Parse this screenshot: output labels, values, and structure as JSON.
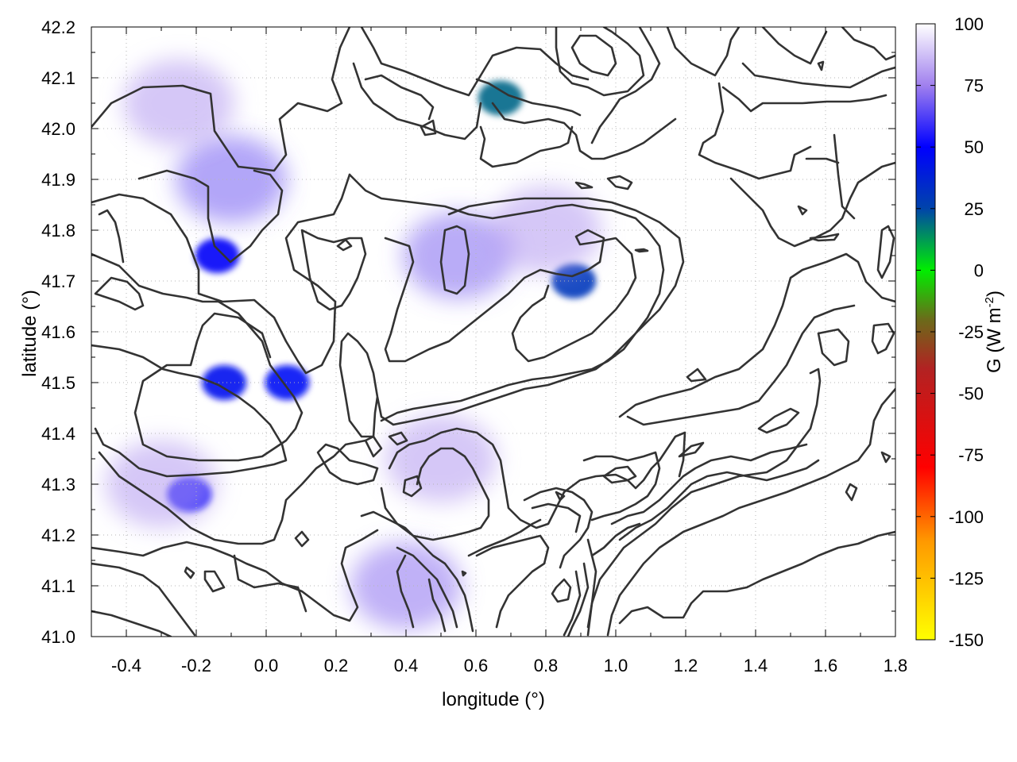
{
  "chart_data": {
    "type": "heatmap",
    "xlabel": "longitude (°)",
    "ylabel": "latitude (°)",
    "xlim": [
      -0.5,
      1.8
    ],
    "ylim": [
      41.0,
      42.2
    ],
    "x_ticks": [
      "-0.4",
      "-0.2",
      "0.0",
      "0.2",
      "0.4",
      "0.6",
      "0.8",
      "1.0",
      "1.2",
      "1.4",
      "1.6",
      "1.8"
    ],
    "x_tick_values": [
      -0.4,
      -0.2,
      0.0,
      0.2,
      0.4,
      0.6,
      0.8,
      1.0,
      1.2,
      1.4,
      1.6,
      1.8
    ],
    "y_ticks": [
      "41.0",
      "41.1",
      "41.2",
      "41.3",
      "41.4",
      "41.5",
      "41.6",
      "41.7",
      "41.8",
      "41.9",
      "42.0",
      "42.1",
      "42.2"
    ],
    "y_tick_values": [
      41.0,
      41.1,
      41.2,
      41.3,
      41.4,
      41.5,
      41.6,
      41.7,
      41.8,
      41.9,
      42.0,
      42.1,
      42.2
    ],
    "grid": true,
    "colorbar": {
      "label": "G (W m-2)",
      "label_main": "G (W m",
      "label_sup": "-2",
      "label_end": ")",
      "range": [
        -150,
        100
      ],
      "ticks": [
        "100",
        "75",
        "50",
        "25",
        "0",
        "-25",
        "-50",
        "-75",
        "-100",
        "-125",
        "-150"
      ],
      "tick_values": [
        100,
        75,
        50,
        25,
        0,
        -25,
        -50,
        -75,
        -100,
        -125,
        -150
      ],
      "palette": [
        {
          "value": -150,
          "color": "#ffff00"
        },
        {
          "value": -110,
          "color": "#ff9900"
        },
        {
          "value": -80,
          "color": "#ff0000"
        },
        {
          "value": -40,
          "color": "#b22222"
        },
        {
          "value": -20,
          "color": "#6b6b1a"
        },
        {
          "value": 0,
          "color": "#00ee00"
        },
        {
          "value": 25,
          "color": "#0044aa"
        },
        {
          "value": 50,
          "color": "#0000ff"
        },
        {
          "value": 75,
          "color": "#a080ee"
        },
        {
          "value": 100,
          "color": "#ffffff"
        }
      ]
    },
    "regions": [
      {
        "lon": -0.12,
        "lat": 41.5,
        "value": 45
      },
      {
        "lon": 0.06,
        "lat": 41.5,
        "value": 47
      },
      {
        "lon": -0.14,
        "lat": 41.75,
        "value": 48
      },
      {
        "lon": 0.88,
        "lat": 41.7,
        "value": 30
      },
      {
        "lon": 0.67,
        "lat": 42.06,
        "value": 20
      },
      {
        "lon": -0.22,
        "lat": 41.28,
        "value": 52
      },
      {
        "lon": 0.55,
        "lat": 41.75,
        "value": 70
      },
      {
        "lon": -0.1,
        "lat": 41.9,
        "value": 68
      },
      {
        "lon": -0.25,
        "lat": 42.05,
        "value": 80
      },
      {
        "lon": 0.4,
        "lat": 41.1,
        "value": 72
      },
      {
        "lon": 0.5,
        "lat": 41.35,
        "value": 80
      },
      {
        "lon": 0.8,
        "lat": 41.8,
        "value": 80
      },
      {
        "lon": -0.3,
        "lat": 41.3,
        "value": 80
      }
    ]
  }
}
